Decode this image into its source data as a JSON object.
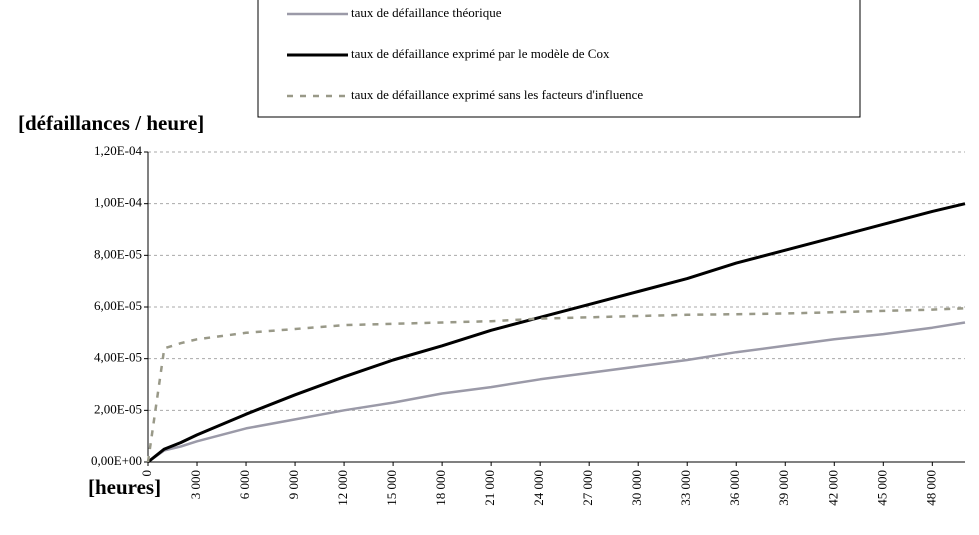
{
  "chart_data": {
    "type": "line",
    "y_label": "[défaillances / heure]",
    "x_label": "[heures]",
    "x": [
      0,
      1000,
      2000,
      3000,
      6000,
      9000,
      12000,
      15000,
      18000,
      21000,
      24000,
      27000,
      30000,
      33000,
      36000,
      39000,
      42000,
      45000,
      48000,
      50000
    ],
    "series": [
      {
        "name": "taux de défaillance théorique",
        "color": "#9b9aa8",
        "style": "solid",
        "values": [
          0,
          4.5e-06,
          6e-06,
          8e-06,
          1.3e-05,
          1.65e-05,
          2e-05,
          2.3e-05,
          2.65e-05,
          2.9e-05,
          3.2e-05,
          3.45e-05,
          3.7e-05,
          3.95e-05,
          4.25e-05,
          4.5e-05,
          4.75e-05,
          4.95e-05,
          5.2e-05,
          5.4e-05
        ]
      },
      {
        "name": "taux de défaillance exprimé par le modèle de Cox",
        "color": "#000000",
        "style": "solid",
        "values": [
          0,
          5e-06,
          7.5e-06,
          1.05e-05,
          1.85e-05,
          2.6e-05,
          3.3e-05,
          3.95e-05,
          4.5e-05,
          5.1e-05,
          5.6e-05,
          6.1e-05,
          6.6e-05,
          7.1e-05,
          7.7e-05,
          8.2e-05,
          8.7e-05,
          9.2e-05,
          9.7e-05,
          0.0001
        ]
      },
      {
        "name": "taux de défaillance exprimé sans les facteurs d'influence",
        "color": "#999988",
        "style": "dashed",
        "values": [
          0,
          4.4e-05,
          4.6e-05,
          4.75e-05,
          5e-05,
          5.15e-05,
          5.3e-05,
          5.35e-05,
          5.4e-05,
          5.45e-05,
          5.55e-05,
          5.6e-05,
          5.65e-05,
          5.7e-05,
          5.72e-05,
          5.75e-05,
          5.8e-05,
          5.85e-05,
          5.9e-05,
          5.95e-05
        ]
      }
    ],
    "xlim": [
      0,
      50000
    ],
    "ylim": [
      0,
      0.00012
    ],
    "xticks": [
      0,
      {
        "value": 3000,
        "label": "3 000"
      },
      {
        "value": 6000,
        "label": "6 000"
      },
      {
        "value": 9000,
        "label": "9 000"
      },
      {
        "value": 12000,
        "label": "12 000"
      },
      {
        "value": 15000,
        "label": "15 000"
      },
      {
        "value": 18000,
        "label": "18 000"
      },
      {
        "value": 21000,
        "label": "21 000"
      },
      {
        "value": 24000,
        "label": "24 000"
      },
      {
        "value": 27000,
        "label": "27 000"
      },
      {
        "value": 30000,
        "label": "30 000"
      },
      {
        "value": 33000,
        "label": "33 000"
      },
      {
        "value": 36000,
        "label": "36 000"
      },
      {
        "value": 39000,
        "label": "39 000"
      },
      {
        "value": 42000,
        "label": "42 000"
      },
      {
        "value": 45000,
        "label": "45 000"
      },
      {
        "value": 48000,
        "label": "48 000"
      }
    ],
    "yticks": [
      {
        "value": 0,
        "label": "0,00E+00"
      },
      {
        "value": 2e-05,
        "label": "2,00E-05"
      },
      {
        "value": 4e-05,
        "label": "4,00E-05"
      },
      {
        "value": 6e-05,
        "label": "6,00E-05"
      },
      {
        "value": 8e-05,
        "label": "8,00E-05"
      },
      {
        "value": 0.0001,
        "label": "1,00E-04"
      },
      {
        "value": 0.00012,
        "label": "1,20E-04"
      }
    ],
    "grid": true,
    "legend": "top"
  }
}
